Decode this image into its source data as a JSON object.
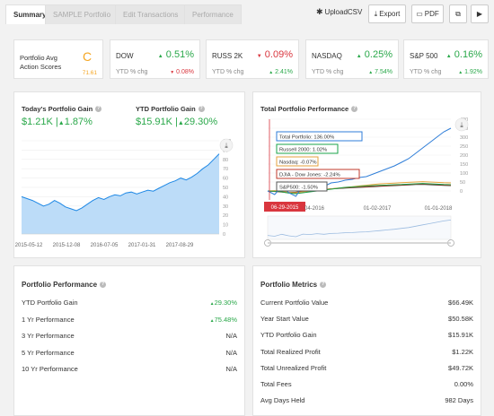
{
  "tabs": [
    {
      "label": "Summary"
    },
    {
      "label": "SAMPLE Portfolio"
    },
    {
      "label": "Edit Transactions"
    },
    {
      "label": "Performance"
    }
  ],
  "toolbar": {
    "upload": "UploadCSV",
    "export": "Export",
    "pdf": "PDF"
  },
  "tickers": {
    "score": {
      "label": "Portfolio Avg Action Scores",
      "grade": "C",
      "value": "71.61"
    },
    "dow": {
      "name": "DOW",
      "value": "0.51%",
      "sub": "YTD % chg",
      "chg": "0.08%"
    },
    "russ": {
      "name": "RUSS 2K",
      "value": "0.09%",
      "sub": "YTD % chg",
      "chg": "2.41%"
    },
    "nasdaq": {
      "name": "NASDAQ",
      "value": "0.25%",
      "sub": "YTD % chg",
      "chg": "7.54%"
    },
    "sp500": {
      "name": "S&P 500",
      "value": "0.16%",
      "sub": "YTD % chg",
      "chg": "1.92%"
    }
  },
  "gain": {
    "today_label": "Today's Portfolio Gain",
    "today_value": "$1.21K |",
    "today_pct": "1.87%",
    "ytd_label": "YTD Portfolio Gain",
    "ytd_value": "$15.91K |",
    "ytd_pct": "29.30%"
  },
  "total_perf": {
    "title": "Total Portfolio Performance",
    "legend": [
      "Total Portfolio: 136.00%",
      "Russell 2000: 1.02%",
      "Nasdaq: -0.07%",
      "DJIA - Dow Jones: -2.24%",
      "S&P500: -1.50%"
    ],
    "date_flag": "06-29-2015"
  },
  "portfolio_performance": {
    "title": "Portfolio Performance",
    "rows": [
      {
        "label": "YTD Portfolio Gain",
        "value": "29.30%"
      },
      {
        "label": "1 Yr Performance",
        "value": "75.48%"
      },
      {
        "label": "3 Yr Performance",
        "value": "N/A"
      },
      {
        "label": "5 Yr Performance",
        "value": "N/A"
      },
      {
        "label": "10 Yr Performance",
        "value": "N/A"
      }
    ]
  },
  "portfolio_metrics": {
    "title": "Portfolio Metrics",
    "rows": [
      {
        "label": "Current Portfolio Value",
        "value": "$66.49K"
      },
      {
        "label": "Year Start Value",
        "value": "$50.58K"
      },
      {
        "label": "YTD Portfolio Gain",
        "value": "$15.91K"
      },
      {
        "label": "Total Realized Profit",
        "value": "$1.22K"
      },
      {
        "label": "Total Unrealized Profit",
        "value": "$49.72K"
      },
      {
        "label": "Total Fees",
        "value": "0.00%"
      },
      {
        "label": "Avg Days Held",
        "value": "982 Days"
      }
    ]
  },
  "colors": {
    "accent": "#2aa84a",
    "negative": "#d9363e",
    "grade": "#f5a623",
    "area": "#1e88e5"
  },
  "chart_data": [
    {
      "type": "area",
      "x_ticks": [
        "2015-05-12",
        "2015-12-08",
        "2016-07-05",
        "2017-01-31",
        "2017-08-29"
      ],
      "y_ticks": [
        "0",
        "10",
        "20",
        "30",
        "40",
        "50",
        "60",
        "70",
        "80",
        "90",
        "100"
      ],
      "ylim": [
        0,
        100
      ],
      "series": [
        {
          "values": [
            40,
            38,
            36,
            33,
            30,
            32,
            36,
            33,
            29,
            27,
            25,
            28,
            32,
            36,
            39,
            37,
            40,
            42,
            41,
            44,
            45,
            43,
            45,
            47,
            46,
            49,
            52,
            55,
            57,
            60,
            58,
            61,
            65,
            70,
            74,
            80,
            86
          ]
        }
      ]
    },
    {
      "type": "line",
      "x_ticks": [
        "04-2016",
        "01-02-2017",
        "01-01-2018"
      ],
      "y_ticks": [
        "0",
        "50",
        "100",
        "150",
        "200",
        "250",
        "300",
        "350",
        "400"
      ],
      "ylim": [
        -50,
        400
      ],
      "series": [
        {
          "name": "Total Portfolio",
          "color": "#2f7ed8",
          "values": [
            0,
            -20,
            25,
            -10,
            -30,
            30,
            20,
            40,
            25,
            45,
            50,
            60,
            65,
            75,
            80,
            95,
            110,
            125,
            140,
            160,
            180,
            210,
            240,
            270,
            300,
            330,
            350
          ]
        },
        {
          "name": "Russell 2000",
          "color": "#1aa34a",
          "values": [
            0,
            -2,
            -5,
            -12,
            -15,
            -10,
            -5,
            0,
            5,
            10,
            15,
            20,
            22,
            25,
            28,
            30,
            32,
            33,
            35,
            36,
            38,
            40,
            42,
            40,
            38,
            36,
            35
          ]
        },
        {
          "name": "Nasdaq",
          "color": "#e6a23c",
          "values": [
            0,
            2,
            -2,
            -8,
            -10,
            -5,
            0,
            5,
            8,
            12,
            16,
            20,
            24,
            28,
            32,
            36,
            40,
            42,
            44,
            46,
            48,
            50,
            52,
            50,
            48,
            46,
            45
          ]
        },
        {
          "name": "DJIA - Dow Jones",
          "color": "#c0392b",
          "values": [
            0,
            -3,
            -6,
            -10,
            -8,
            -4,
            0,
            4,
            8,
            12,
            15,
            18,
            20,
            22,
            24,
            26,
            28,
            30,
            32,
            34,
            36,
            38,
            40,
            38,
            36,
            34,
            32
          ]
        },
        {
          "name": "S&P500",
          "color": "#333333",
          "values": [
            0,
            -1,
            -4,
            -9,
            -7,
            -3,
            1,
            5,
            9,
            12,
            14,
            16,
            18,
            20,
            22,
            24,
            26,
            28,
            30,
            32,
            34,
            36,
            37,
            35,
            33,
            31,
            30
          ]
        }
      ]
    }
  ]
}
